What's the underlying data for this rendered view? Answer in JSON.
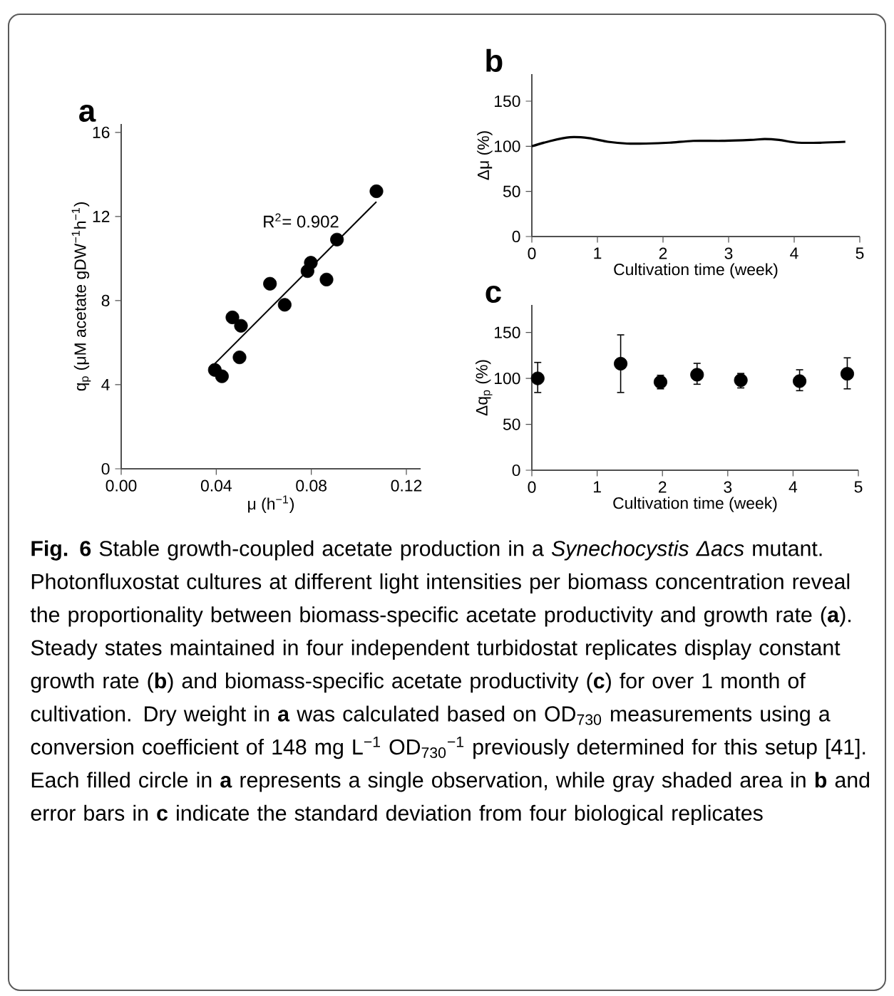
{
  "chart_data": [
    {
      "type": "scatter",
      "title": "a",
      "xlabel": "μ (h$^{−1}$)",
      "ylabel": "q$_{p}$ (μM acetate gDW$^{−1}$h$^{−1}$)",
      "xlim": [
        0,
        0.126
      ],
      "ylim": [
        0,
        16.4
      ],
      "xticks": [
        {
          "value": 0,
          "label": "0.00"
        },
        0.04,
        0.08,
        0.12
      ],
      "yticks": [
        0,
        4,
        8,
        12,
        16
      ],
      "annotations": [
        "R$^{2}$= 0.902"
      ],
      "series": [
        {
          "type": "scatter",
          "marker": "circle",
          "color": "#000000",
          "x": [
            0.0394,
            0.0424,
            0.0468,
            0.0504,
            0.0498,
            0.0626,
            0.0688,
            0.0784,
            0.0798,
            0.0864,
            0.0908,
            0.1074
          ],
          "values": [
            4.7,
            4.4,
            7.2,
            6.8,
            5.3,
            8.8,
            7.8,
            9.4,
            9.8,
            9.0,
            10.9,
            13.2
          ]
        },
        {
          "type": "line",
          "marker": "none",
          "color": "#000000",
          "x": [
            0.0394,
            0.1074
          ],
          "values": [
            5.0,
            12.7
          ]
        }
      ]
    },
    {
      "type": "line",
      "title": "b",
      "xlabel": "Cultivation time (week)",
      "ylabel": "Δμ (%)",
      "xlim": [
        0,
        5
      ],
      "ylim": [
        0,
        180
      ],
      "xticks": [
        0,
        1,
        2,
        3,
        4,
        5
      ],
      "yticks": [
        0,
        50,
        100,
        150
      ],
      "color": "#000000",
      "x": [
        0,
        0.29,
        0.58,
        0.87,
        1.16,
        1.45,
        1.74,
        2.1,
        2.46,
        2.9,
        3.33,
        3.55,
        3.77,
        4.06,
        4.42,
        4.78
      ],
      "values": [
        100,
        106,
        110,
        109,
        105,
        103,
        103,
        104,
        106,
        106,
        107,
        108,
        107,
        104,
        104,
        105
      ]
    },
    {
      "type": "scatter",
      "title": "c",
      "xlabel": "Cultivation time (week)",
      "ylabel": "Δq$_{p}$ (%)",
      "xlim": [
        0,
        5
      ],
      "ylim": [
        0,
        180
      ],
      "xticks": [
        0,
        1,
        2,
        3,
        4,
        5
      ],
      "yticks": [
        0,
        50,
        100,
        150
      ],
      "color": "#000000",
      "marker": "circle",
      "x": [
        0.09,
        1.36,
        1.97,
        2.53,
        3.2,
        4.1,
        4.83
      ],
      "values": [
        100,
        116,
        96,
        104,
        98,
        97,
        105
      ],
      "errors": [
        [
          84,
          118
        ],
        [
          84,
          148
        ],
        [
          88,
          104
        ],
        [
          93,
          117
        ],
        [
          89,
          106
        ],
        [
          86,
          110
        ],
        [
          88,
          123
        ]
      ],
      "annotations": [
        "**Fig. 6**  Stable growth-coupled acetate production in a *Synechocystis Δacs* mutant. Photonfluxostat cultures at different light intensities per biomass concentration reveal the proportionality between biomass-specific acetate productivity and growth rate (**a**). Steady states maintained in four independent turbidostat replicates display constant growth rate (**b**) and biomass-specific acetate productivity (**c**) for over 1 month of cultivation. Dry weight in **a** was calculated based on OD$_{730}$ measurements using a conversion coefficient of 148 mg L$^{−1}$ OD$_{730}$$^{−1}$ previously determined for this setup [41]. Each filled circle in **a** represents a single observation, while gray shaded area in **b** and error bars in **c** indicate the standard deviation from four biological replicates"
      ]
    }
  ]
}
